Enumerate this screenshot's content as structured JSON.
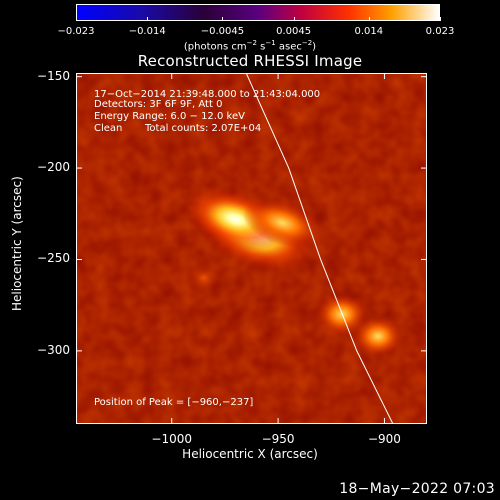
{
  "colorbar": {
    "tick_labels": [
      "−0.023",
      "−0.014",
      "−0.0045",
      "0.0045",
      "0.014",
      "0.023"
    ],
    "tick_values": [
      -0.023,
      -0.014,
      -0.0045,
      0.0045,
      0.014,
      0.023
    ],
    "range": [
      -0.023,
      0.023
    ],
    "units_main": "(photons cm",
    "units_sup1": "−2",
    "units_mid1": " s",
    "units_sup2": "−1",
    "units_mid2": " asec",
    "units_sup3": "−2",
    "units_end": ")"
  },
  "title": "Reconstructed RHESSI Image",
  "annotations": {
    "time": "17−Oct−2014 21:39:48.000 to 21:43:04.000",
    "detectors": "Detectors: 3F 6F 9F, Att 0",
    "energy": "Energy Range: 6.0 − 12.0 keV",
    "clean": "Clean",
    "counts": "Total counts: 2.07E+04",
    "peak": "Position of Peak = [−960,−237]"
  },
  "axes": {
    "xlabel": "Heliocentric X (arcsec)",
    "ylabel": "Heliocentric Y (arcsec)",
    "xlim": [
      -1045,
      -880
    ],
    "ylim": [
      -340,
      -148
    ],
    "xtick_labels": [
      "−1000",
      "−950",
      "−900"
    ],
    "xtick_values": [
      -1000,
      -950,
      -900
    ],
    "ytick_labels": [
      "−150",
      "−200",
      "−250",
      "−300"
    ],
    "ytick_values": [
      -150,
      -200,
      -250,
      -300
    ]
  },
  "sources": [
    {
      "x": -960,
      "y": -237,
      "intensity": 0.023
    },
    {
      "x": -970,
      "y": -228,
      "intensity": 0.019
    },
    {
      "x": -948,
      "y": -230,
      "intensity": 0.012
    },
    {
      "x": -920,
      "y": -280,
      "intensity": 0.011
    },
    {
      "x": -903,
      "y": -292,
      "intensity": 0.01
    },
    {
      "x": -985,
      "y": -260,
      "intensity": 0.004
    }
  ],
  "limb_curve": [
    [
      -965,
      -148
    ],
    [
      -945,
      -200
    ],
    [
      -930,
      -250
    ],
    [
      -913,
      -300
    ],
    [
      -896,
      -340
    ]
  ],
  "footer_date": "18−May−2022 07:03"
}
